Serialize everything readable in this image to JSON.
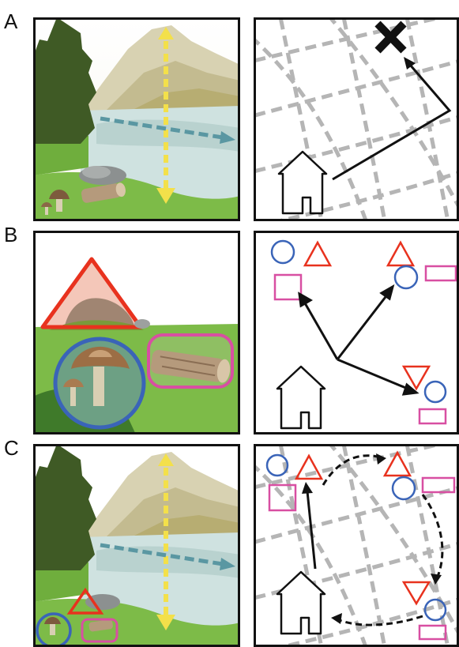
{
  "rows": [
    {
      "label": "A",
      "scene": "mountain-lake-landscape",
      "map": "grid-cells-vector-path"
    },
    {
      "label": "B",
      "scene": "landmark-closeup",
      "map": "landmark-vectors"
    },
    {
      "label": "C",
      "scene": "mountain-lake-landscape-with-landmarks",
      "map": "grid-and-landmark-path"
    }
  ],
  "colors": {
    "border": "#111111",
    "grid_dash": "#b5b5b5",
    "triangle": "#e8321e",
    "circle": "#3a64b8",
    "square": "#d84fa2",
    "arrow_yellow": "#f3e04a",
    "arrow_teal": "#5a97a2",
    "grass": "#7dbb48",
    "water": "#cfe2e0",
    "mountain": "#cfc8a4",
    "tree": "#3f5a25"
  },
  "icons": [
    "house-icon",
    "cross-goal-icon",
    "triangle-landmark",
    "circle-landmark",
    "square-landmark",
    "mushroom",
    "log",
    "rock",
    "pine-tree"
  ]
}
